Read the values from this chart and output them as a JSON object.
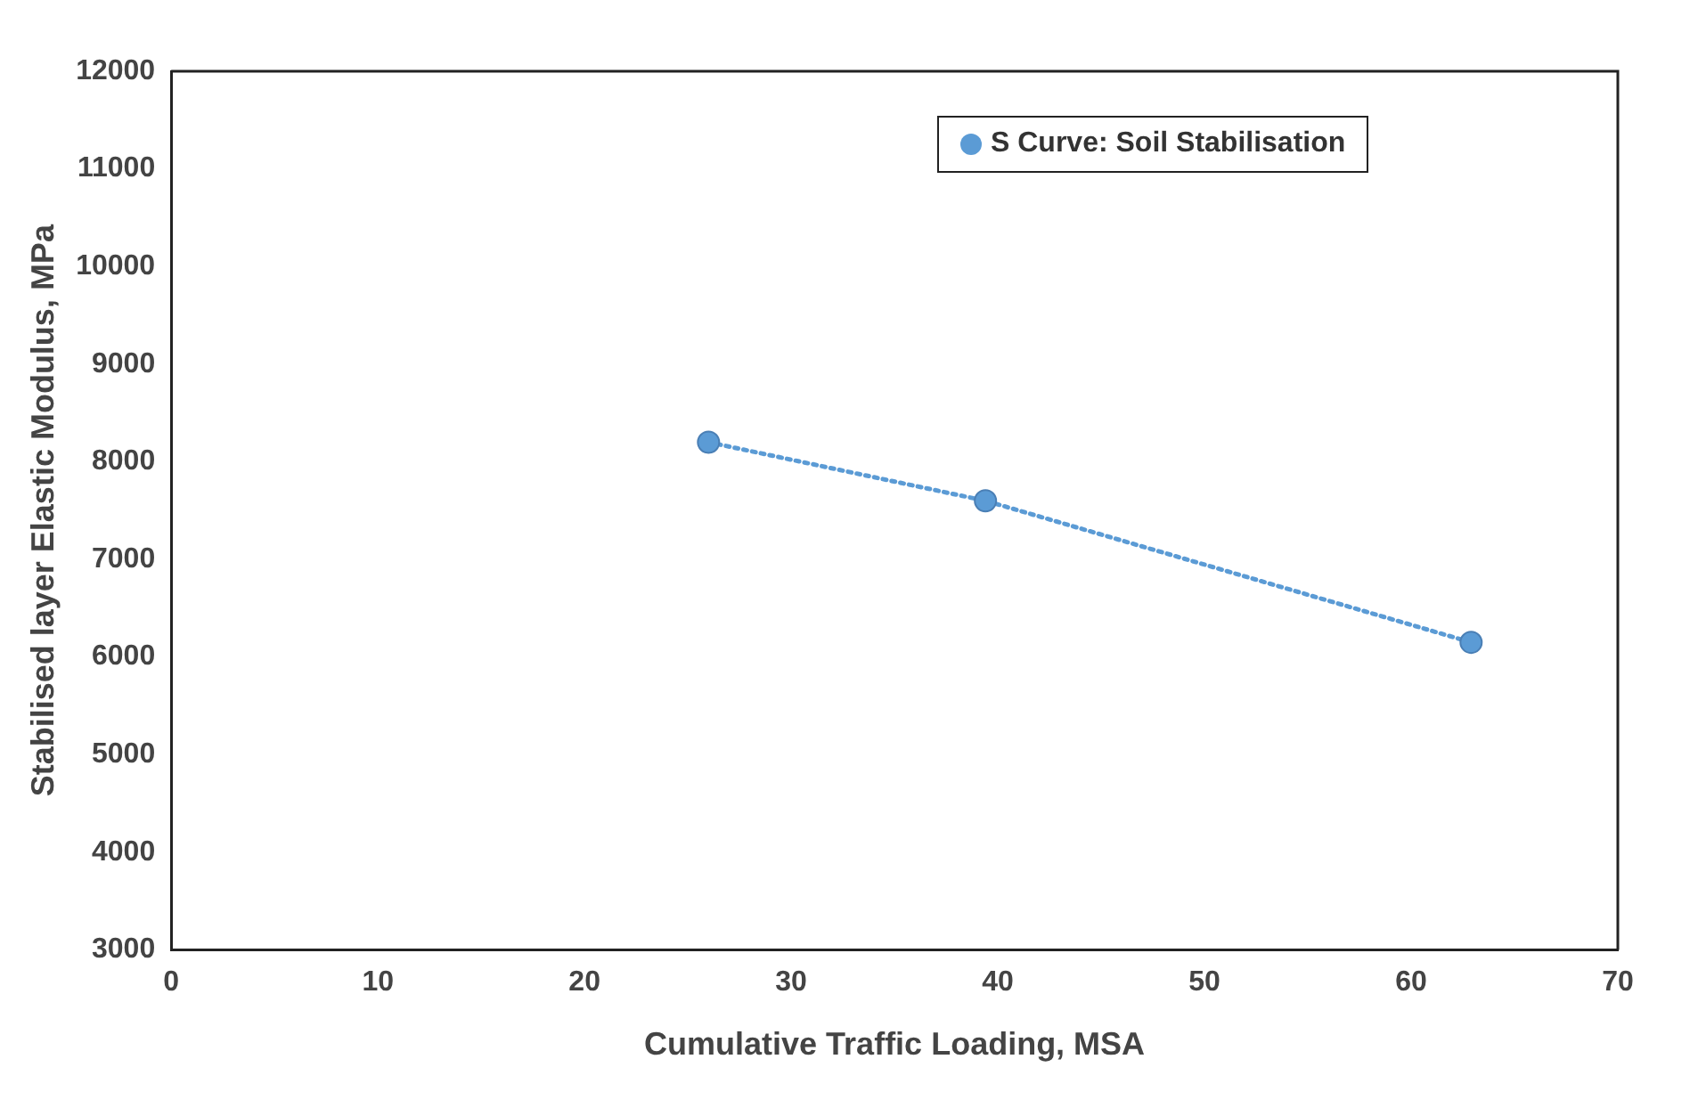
{
  "chart_data": {
    "type": "line",
    "xlabel": "Cumulative Traffic Loading, MSA",
    "ylabel": "Stabilised layer Elastic Modulus, MPa",
    "series": [
      {
        "name": "S Curve: Soil Stabilisation",
        "color": "#5b9bd5",
        "x": [
          26,
          39.4,
          62.9
        ],
        "values": [
          8200,
          7600,
          6150
        ]
      }
    ],
    "xlim": [
      0,
      70
    ],
    "xticks": [
      0,
      10,
      20,
      30,
      40,
      50,
      60,
      70
    ],
    "ylim": [
      3000,
      12000
    ],
    "yticks": [
      3000,
      4000,
      5000,
      6000,
      7000,
      8000,
      9000,
      10000,
      11000,
      12000
    ],
    "grid": false,
    "legend": "top right",
    "marker": "circle",
    "line_style": "dotted"
  }
}
